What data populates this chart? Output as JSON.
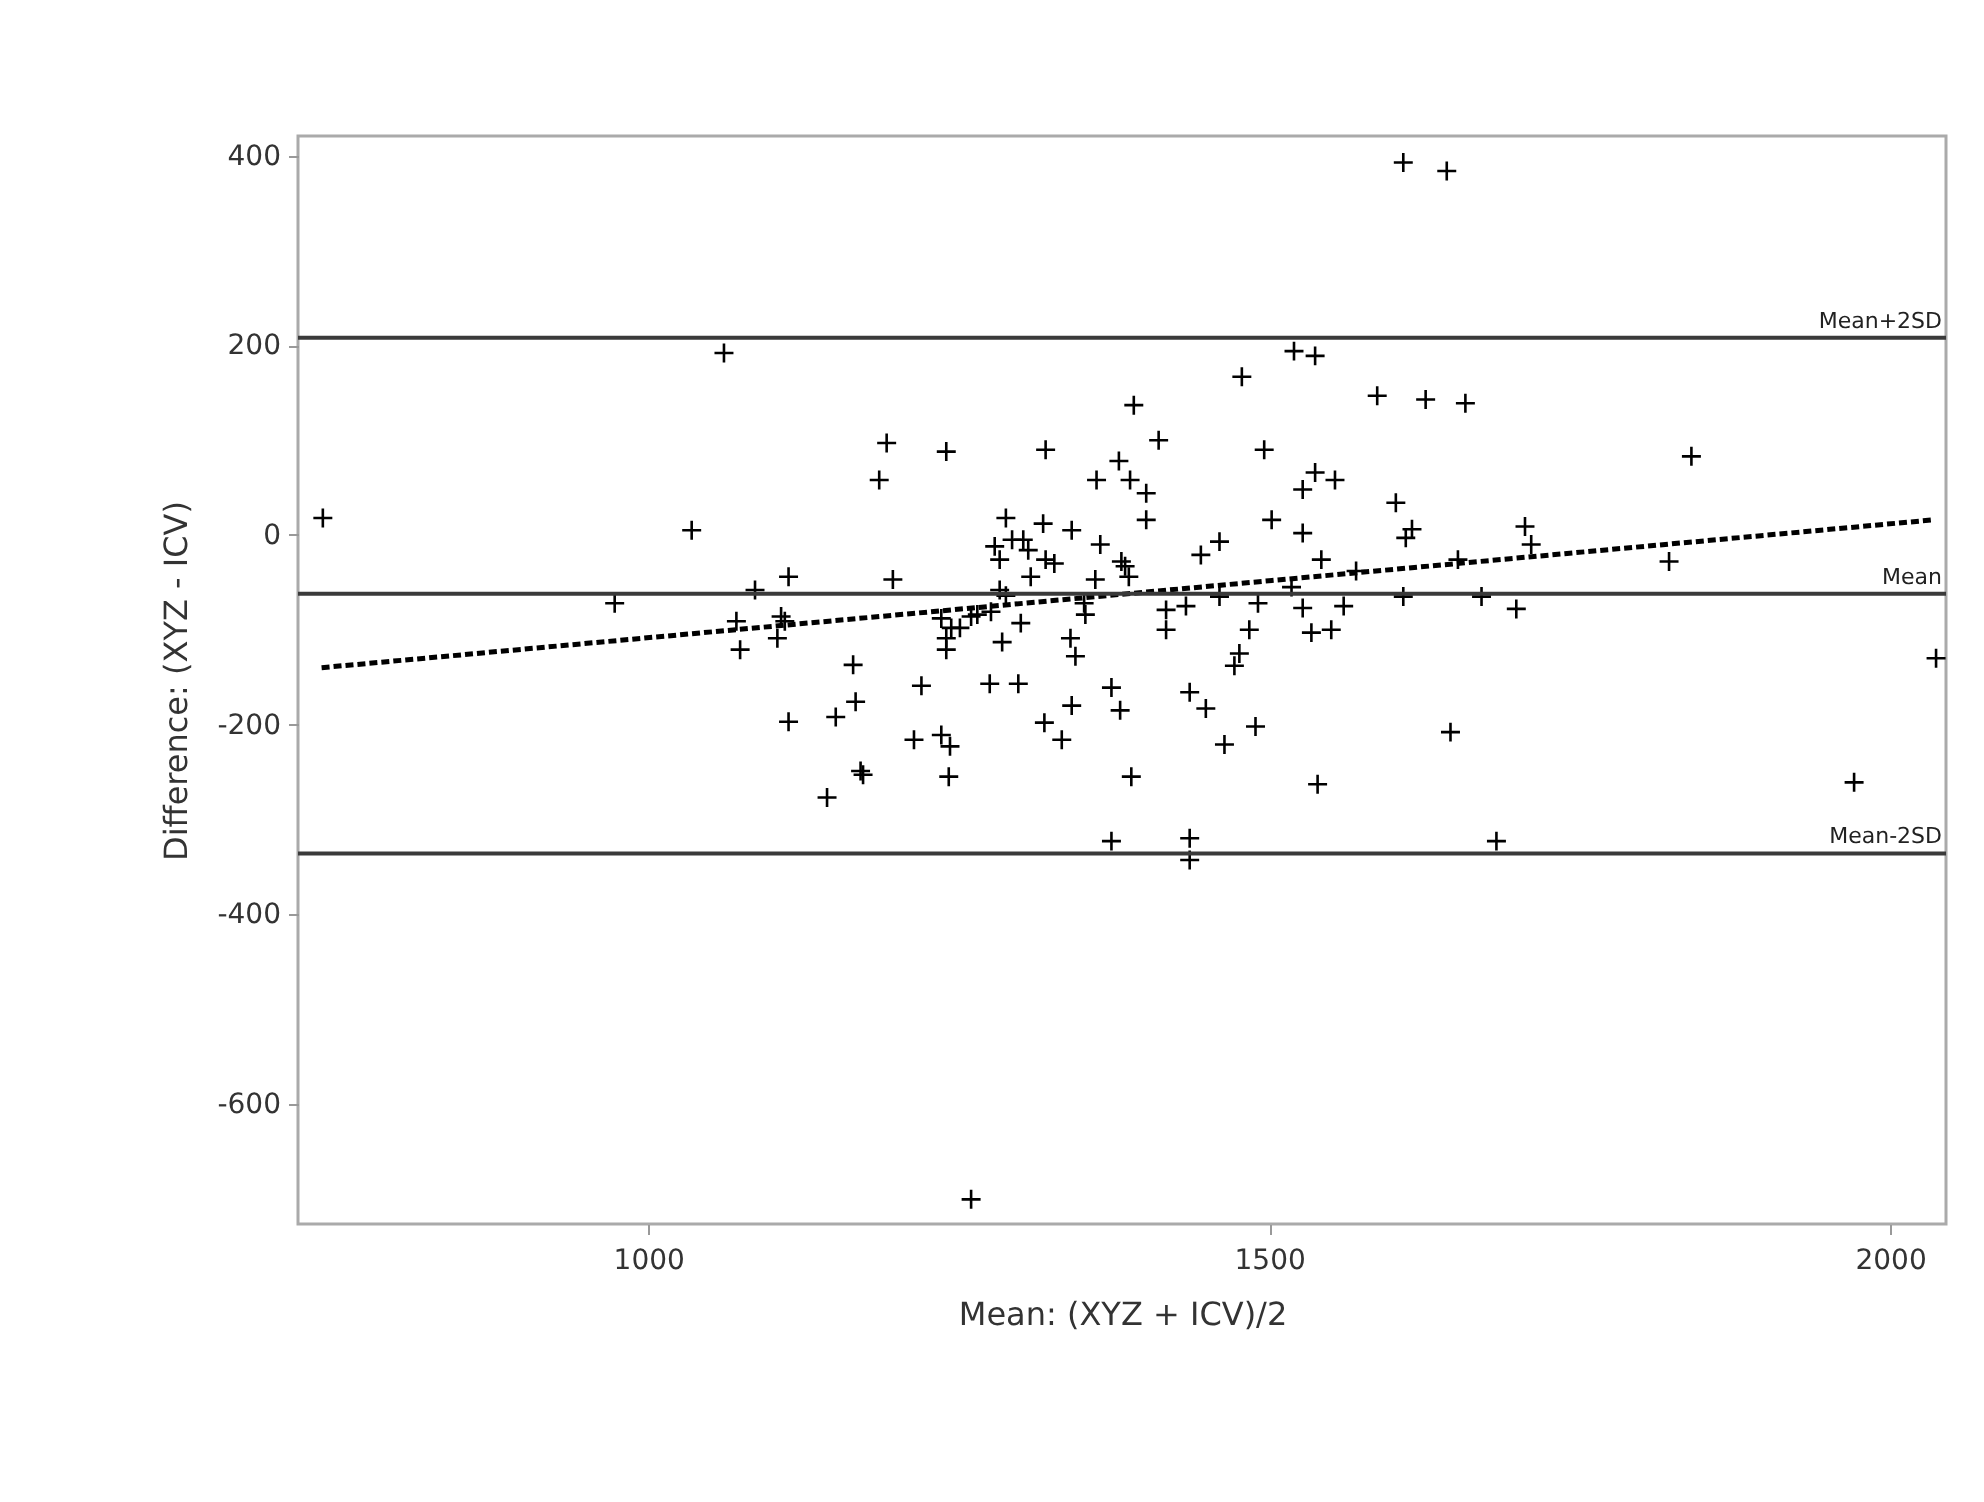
{
  "chart_data": {
    "type": "scatter",
    "xlabel": "Mean: (XYZ + ICV)/2",
    "ylabel": "Difference: (XYZ - ICV)",
    "xlim": [
      718,
      2045
    ],
    "ylim": [
      -727,
      421
    ],
    "xticks": [
      1000,
      1500,
      2000
    ],
    "yticks": [
      -600,
      -400,
      -200,
      0,
      200,
      400
    ],
    "grid": false,
    "series": [
      {
        "color": "#000000",
        "marker": "cross",
        "x": [
          738,
          1061,
          1035,
          973,
          1086,
          1113,
          1071,
          1074,
          1107,
          1110,
          1104,
          1192,
          1186,
          1240,
          1197,
          1165,
          1320,
          1361,
          1379,
          1388,
          1391,
          1288,
          1293,
          1302,
          1279,
          1283,
          1306,
          1318,
          1341,
          1320,
          1327,
          1364,
          1381,
          1384,
          1308,
          1360,
          1283,
          1288,
          1351,
          1352,
          1300,
          1276,
          1265,
          1236,
          1244,
          1251,
          1240,
          1240,
          1260,
          1285,
          1340,
          1344,
          1373,
          1220,
          1275,
          1298,
          1113,
          1151,
          1167,
          1214,
          1236,
          1243,
          1319,
          1341,
          1333,
          1380,
          1171,
          1173,
          1242,
          1144,
          1373,
          1260,
          1389,
          1608,
          1643,
          1520,
          1537,
          1478,
          1587,
          1626,
          1658,
          1840,
          1411,
          1401,
          1401,
          1496,
          1537,
          1527,
          1553,
          1502,
          1527,
          1602,
          1615,
          1610,
          1706,
          1711,
          1822,
          1460,
          1445,
          1387,
          1542,
          1570,
          1652,
          1417,
          1417,
          1433,
          1460,
          1491,
          1484,
          1527,
          1534,
          1550,
          1560,
          1608,
          1671,
          1699,
          1476,
          1472,
          1436,
          2037,
          1518,
          1449,
          1489,
          1464,
          1539,
          1646,
          1971,
          1436,
          1436,
          1683
        ],
        "values": [
          18,
          192,
          5,
          -72,
          -58,
          -44,
          -91,
          -121,
          -86,
          -91,
          -109,
          97,
          58,
          88,
          -47,
          -137,
          90,
          58,
          78,
          58,
          137,
          18,
          -5,
          -5,
          -12,
          -26,
          -16,
          12,
          5,
          -26,
          -30,
          -10,
          -28,
          -33,
          -44,
          -47,
          -58,
          -64,
          -72,
          -84,
          -93,
          -81,
          -84,
          -88,
          -98,
          -98,
          -109,
          -121,
          -86,
          -113,
          -109,
          -128,
          -161,
          -159,
          -157,
          -157,
          -197,
          -192,
          -176,
          -216,
          -211,
          -223,
          -198,
          -180,
          -216,
          -185,
          -249,
          -253,
          -255,
          -277,
          -323,
          -701,
          -255,
          393,
          384,
          194,
          189,
          167,
          147,
          143,
          139,
          83,
          100,
          44,
          16,
          90,
          66,
          48,
          58,
          16,
          2,
          34,
          6,
          -3,
          9,
          -10,
          -28,
          -7,
          -21,
          -44,
          -26,
          -38,
          -26,
          -79,
          -100,
          -75,
          -65,
          -72,
          -100,
          -77,
          -103,
          -100,
          -75,
          -65,
          -65,
          -78,
          -125,
          -138,
          -166,
          -130,
          -55,
          -183,
          -202,
          -221,
          -263,
          -208,
          -261,
          -320,
          -343,
          -323
        ]
      },
      {
        "type": "line",
        "color": "#000000",
        "line_style": "dashed",
        "x": [
          737,
          2035
        ],
        "values": [
          -140,
          16
        ]
      }
    ],
    "ref_lines": [
      {
        "axis": "y",
        "value": 208,
        "label": "Mean+2SD",
        "color": "#3a3a3a"
      },
      {
        "axis": "y",
        "value": -62,
        "label": "Mean",
        "color": "#3a3a3a"
      },
      {
        "axis": "y",
        "value": -336,
        "label": "Mean-2SD",
        "color": "#3a3a3a"
      }
    ]
  }
}
